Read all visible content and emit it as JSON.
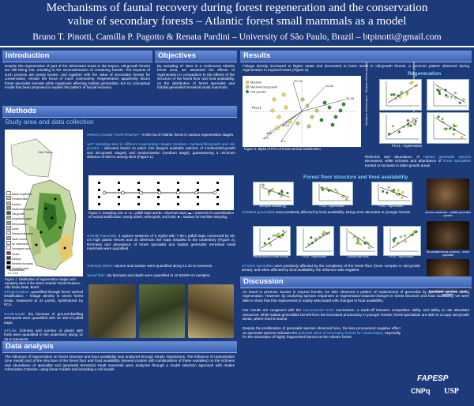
{
  "header": {
    "title_line1": "Mechanisms of faunal recovery during forest regeneration and the conservation",
    "title_line2": "value of secondary forests – Atlantic forest small mammals as a model",
    "authors": "Bruno T. Pinotti, Camilla P. Pagotto & Renata Pardini – University of São Paulo, Brazil – btpinotti@gmail.com"
  },
  "introduction": {
    "heading": "Introduction",
    "text": "Despite the regeneration of part of the deforested areas in the tropics, old-growth forests are still being lost, resulting in the secondarization of remaining forests. The impacts of such process are poorly known, and together with the value of secondary forests for conservation, remain the focus of much controversy. Regeneration apparently favors forest specialist animals while negatively affecting habitat generalists, but no conceptual model has been proposed to explain the pattern of faunal recovery."
  },
  "objectives": {
    "heading": "Objectives",
    "text": "By sampling 27 sites in a continuous Atlantic forest area, we assessed the effects of regeneration in comparison to the effects of the structure of the forest floor and food availability, on the distribution of forest specialist and habitat generalist terrestrial small mammals."
  },
  "methods": {
    "heading": "Methods",
    "subheading": "Study area and data collection",
    "reserve_label": "➤Morro Grande Forest Reserve",
    "reserve_text": " – 9,400 ha of Atlantic forest in various regeneration stages.",
    "sites_label": "➤27 sampling sites in different regeneration stages (medium, medium/old-growth and old-growth)",
    "sites_text": " – allocated based on patch size (largest available patches of medium/old-growth and old-growth stages) and randomization (medium stage), guaranteeing a minimum distance of 500 m among sites (Figure 1).",
    "fig1_caption": "Figure 1: Distribution of regeneration stages and sampling sites in the Morro Grande Forest Reserve, São Paulo State, Brazil.",
    "fig2_caption": "Figure 2: Sampling unit. ●—● = pitfall traps and ■ = Sherman traps; ▬ = transects for quantification of vertical stratification, woody debris, arthropods, and fruits; ■ = stations for leaf litter sampling.",
    "regeneration_label": "➤Regeneration:",
    "regeneration_text": " quantified through forest vertical stratification – foliage density in seven forest strata, measured at 24 points, synthesized by PCA.",
    "arthropods_label": "➤Arthropods:",
    "arthropods_text": " dry biomass of ground-dwelling arthropods were quantified with 24 400-ml pitfall traps.",
    "fruits_label": "➤Fruits:",
    "fruits_text": " richness and number of plants with fruits were quantified in the understory along 12 15-m transects.",
    "mammals_label": "➤Small mammals:",
    "mammals_text": " 3 capture sessions of 5 nights with 7 60-L pitfall traps connected by 50-cm high plastic fences and 20 Sherman live traps installed in the understory (Figure 2). Richness and abundance of forest specialist and habitat generalist terrestrial small mammals were quantified.",
    "debris_label": "➤Woody debris:",
    "debris_text": " volume and number were quantified along 12 15-m transects.",
    "litter_label": "➤Leaf litter:",
    "litter_text": " dry biomass and depth were quantified in 12 50x50-cm samples.",
    "map_legend": [
      "Native vegetation",
      "Pioneer/initial",
      "Medium",
      "Medium/old-growth",
      "Old-growth",
      "Degraded/logged",
      "Reforestation",
      "Urban",
      "Pasture/cultivation",
      "Water bodies",
      "No information",
      "Unmapped area",
      "Roads",
      "Railway",
      "Reserve boundary",
      "Sampling sites"
    ],
    "map_scale": "0   1   2 km",
    "map_city": "São Paulo"
  },
  "data_analysis": {
    "heading": "Data analysis",
    "text": "The influence of regeneration on forest structure and food availability was analyzed through simple regressions. The influence of regeneration (one model) and of the structure of the forest floor and food availability (several models with combinations of these variables) on the richness and abundance of specialist and generalist terrestrial small mammals were analyzed through a model selection approach with Akaike Information Criterion, using linear models and including a null model."
  },
  "results": {
    "heading": "Results",
    "intro": "Foliage density increased in higher strata and decreased in lower strata in old-growth forests, a common pattern observed during regeneration in tropical forests (Figure 3).",
    "pca_legend": [
      "Medium",
      "Medium/old-growth",
      "Old-growth"
    ],
    "pca_axis": "PCA1",
    "pca_labels": [
      "15-20",
      "10-15",
      "20-25",
      "5-10",
      "2-5",
      "1-2",
      "0-1"
    ],
    "fig3_caption": "Figure 3: Biplot of PCA of forest vertical stratification.",
    "regeneration_band": "Regeneration",
    "regen_ylabels": [
      "Richness of forest specialists",
      "Abundance of forest specialists",
      "Richness of habitat generalists",
      "Abundance of habitat generalists"
    ],
    "regen_xlabel": "PCA1 - regeneration",
    "regen_text_pre": "Richness and abundance of ",
    "regen_text_hl": "habitat generalist species",
    "regen_text_mid": " decreased, while richness and abundance of ",
    "regen_text_hl2": "forest specialists",
    "regen_text_post": " tended to increase in older-growth areas.",
    "ffs_band": "Forest floor structure and food availability",
    "ffs_xlabels": [
      "Arthropod biomass (g)",
      "PCA1 - regeneration",
      "PCA1 - regeneration"
    ],
    "generalists_text_pre": "➤",
    "generalists_label": "Habitat generalists",
    "generalists_text": " were positively affected by food availability, being more abundant in younger forests.",
    "ffs_xlabels2": [
      "Woody debris volume (m³/ha)",
      "PCA1 - regeneration",
      "# plants with fruits",
      "PCA1 - regeneration"
    ],
    "specialists_text_pre": "➤",
    "specialists_label": "Forest specialists",
    "specialists_text": " were positively affected by the complexity of the forest floor (more complex in old-growth areas), and when affected by food availability, the influence was negative.",
    "photo_captions": [
      "Akodon montensis – habitat generalist species",
      "Brucepattersonius soricinus – forest specialist",
      "Monodelphis americana – forest specialist"
    ]
  },
  "discussion": {
    "heading": "Discussion",
    "p1": "As found in previous studies in tropical forests, we also observed a pattern of replacement of generalist by specialist species during regeneration. However, by analyzing species responses to regeneration-induced changes in forest structure and food availability, we were able to show that this replacement is mainly associated with changes in food availability.",
    "p2_pre": "Our results are congruent with the ",
    "p2_hl": "successional niche",
    "p2_post": " mechanism, a trade-off between competitive ability and ability to use abundant resources: while habitat generalists benefit from the increased productivity in younger forests, forest specialists are able to occupy old-growth areas, where food is scarce.",
    "p3_pre": "Despite the proliferation of generalist species observed here, the less pronounced negative effect on specialist species indicates the ",
    "p3_hl": "potential value of secondary forests for conservation",
    "p3_post": ", especially for the restoration of highly fragmented biomes as the Atlantic forest."
  },
  "logos": {
    "fapesp": "FAPESP",
    "cnpq": "CNPq",
    "usp": "USP"
  }
}
